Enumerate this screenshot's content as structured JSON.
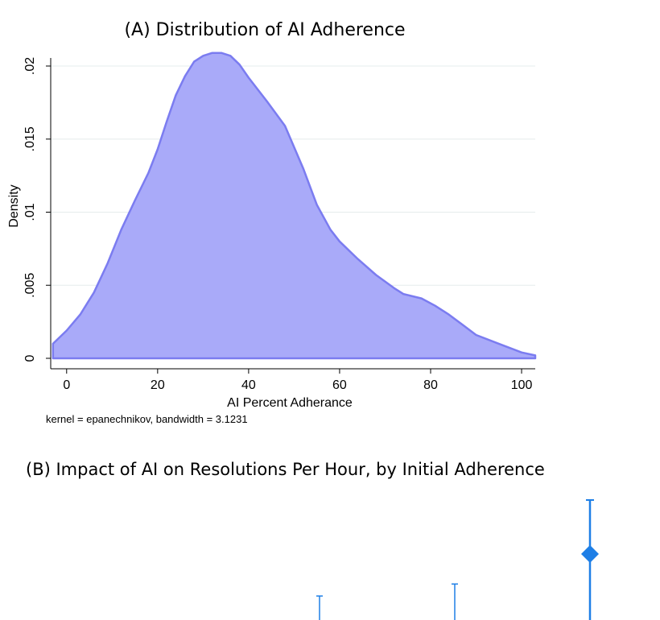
{
  "colors": {
    "density_fill": "#A9AAF9",
    "density_line": "#7B7CF0",
    "grid": "#E6ECEC",
    "marker": "#1E7FE6"
  },
  "chart_data": [
    {
      "type": "area",
      "title": "(A)  Distribution of AI Adherence",
      "xlabel": "AI Percent Adherance",
      "ylabel": "Density",
      "note": "kernel = epanechnikov, bandwidth = 3.1231",
      "xlim": [
        -3.5,
        103
      ],
      "ylim": [
        0,
        0.021
      ],
      "x_ticks": [
        0,
        20,
        40,
        60,
        80,
        100
      ],
      "x_tick_labels": [
        "0",
        "20",
        "40",
        "60",
        "80",
        "100"
      ],
      "y_ticks": [
        0,
        0.005,
        0.01,
        0.015,
        0.02
      ],
      "y_tick_labels": [
        "0",
        ".005",
        ".01",
        ".015",
        ".02"
      ],
      "grid": true,
      "x": [
        -3,
        0,
        3,
        6,
        9,
        12,
        15,
        18,
        20,
        22,
        24,
        26,
        28,
        30,
        32,
        34,
        36,
        38,
        40,
        44,
        48,
        52,
        55,
        58,
        60,
        64,
        68,
        72,
        74,
        78,
        81,
        84,
        87,
        90,
        95,
        100,
        103
      ],
      "density": [
        0.001,
        0.0019,
        0.003,
        0.0045,
        0.0065,
        0.0088,
        0.0108,
        0.0127,
        0.0143,
        0.0162,
        0.018,
        0.0193,
        0.0203,
        0.0207,
        0.0209,
        0.0209,
        0.0207,
        0.0201,
        0.0192,
        0.0176,
        0.0159,
        0.013,
        0.0105,
        0.0088,
        0.008,
        0.0068,
        0.0057,
        0.0048,
        0.0044,
        0.0041,
        0.0036,
        0.003,
        0.0023,
        0.0016,
        0.001,
        0.0004,
        0.0002
      ]
    },
    {
      "type": "scatter",
      "title": "(B)  Impact of AI on Resolutions Per Hour, by Initial Adherence",
      "points": [
        {
          "group": 1,
          "ci_upper": 0.2
        },
        {
          "group": 2,
          "ci_upper": 0.3
        },
        {
          "group": 3,
          "estimate": 0.55,
          "ci_upper": 1.0
        }
      ]
    }
  ]
}
